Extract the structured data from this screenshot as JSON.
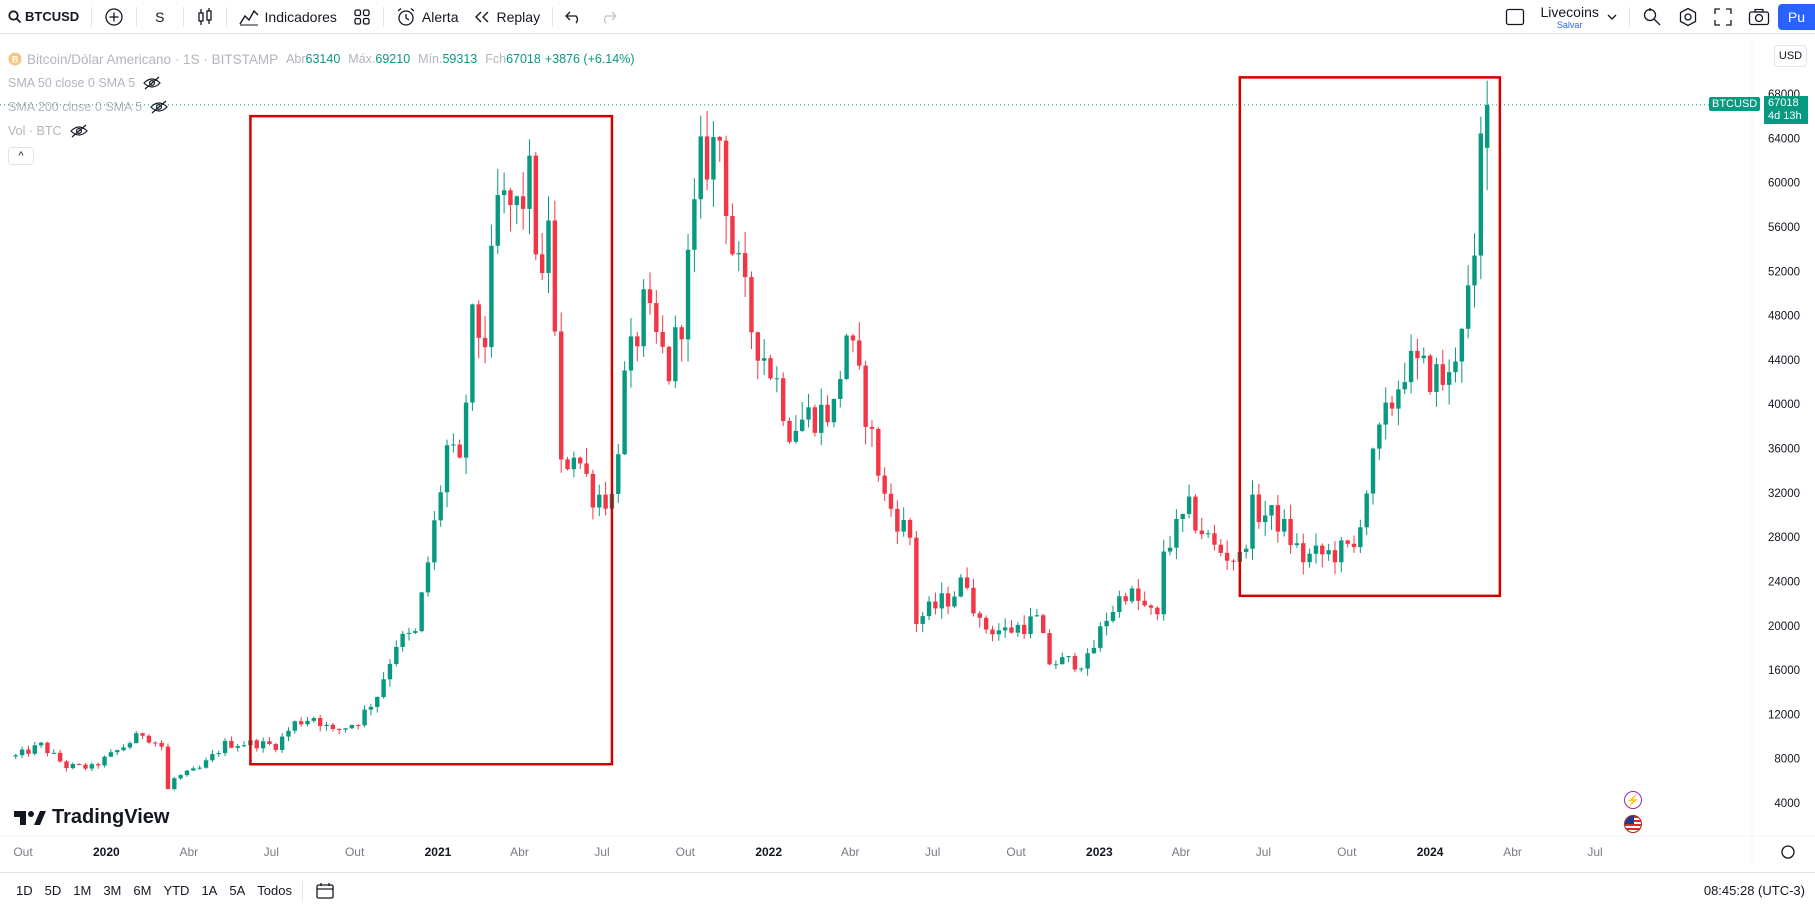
{
  "toolbar": {
    "symbol": "BTCUSD",
    "interval": "S",
    "indicators_label": "Indicadores",
    "alert_label": "Alerta",
    "replay_label": "Replay",
    "layout_name": "Livecoins",
    "layout_status": "Salvar",
    "publish_label": "Pu"
  },
  "legend": {
    "title": "Bitcoin/Dólar Americano · 1S · BITSTAMP",
    "open_label": "Abr",
    "open": "63140",
    "high_label": "Máx.",
    "high": "69210",
    "low_label": "Mín.",
    "low": "59313",
    "close_label": "Fch",
    "close": "67018",
    "change": "+3876 (+6.14%)",
    "indicators": [
      "SMA 50 close 0 SMA 5",
      "SMA 200 close 0 SMA 5",
      "Vol · BTC"
    ],
    "collapse_glyph": "^"
  },
  "currency": "USD",
  "price_tag": {
    "symbol": "BTCUSD",
    "price": "67018",
    "countdown": "4d 13h"
  },
  "brand": "TradingView",
  "bottom": {
    "ranges": [
      "1D",
      "5D",
      "1M",
      "3M",
      "6M",
      "YTD",
      "1A",
      "5A",
      "Todos"
    ],
    "clock": "08:45:28 (UTC-3)"
  },
  "colors": {
    "up": "#089981",
    "down": "#f23645",
    "highlight": "#d40000",
    "accent": "#2962ff"
  },
  "chart_data": {
    "type": "candlestick",
    "interval": "weekly",
    "y_ticks": [
      4000,
      8000,
      12000,
      16000,
      20000,
      24000,
      28000,
      32000,
      36000,
      40000,
      44000,
      48000,
      52000,
      56000,
      60000,
      64000,
      68000
    ],
    "x_ticks": [
      "Out",
      "2020",
      "Abr",
      "Jul",
      "Out",
      "2021",
      "Abr",
      "Jul",
      "Out",
      "2022",
      "Abr",
      "Jul",
      "Out",
      "2023",
      "Abr",
      "Jul",
      "Out",
      "2024",
      "Abr",
      "Jul"
    ],
    "x_range": [
      "2019-10",
      "2024-07"
    ],
    "ylim": [
      2000,
      70000
    ],
    "last_price": 67018,
    "close_path": [
      [
        "2019-09-23",
        8200
      ],
      [
        "2019-10-21",
        9200
      ],
      [
        "2019-11-18",
        7300
      ],
      [
        "2019-12-16",
        7200
      ],
      [
        "2020-01-13",
        8700
      ],
      [
        "2020-02-10",
        10300
      ],
      [
        "2020-03-02",
        9100
      ],
      [
        "2020-03-09",
        5200
      ],
      [
        "2020-03-16",
        6200
      ],
      [
        "2020-04-13",
        7100
      ],
      [
        "2020-05-11",
        9300
      ],
      [
        "2020-06-08",
        9400
      ],
      [
        "2020-07-06",
        9200
      ],
      [
        "2020-07-27",
        11200
      ],
      [
        "2020-08-17",
        11800
      ],
      [
        "2020-09-07",
        10400
      ],
      [
        "2020-10-05",
        11400
      ],
      [
        "2020-10-26",
        13800
      ],
      [
        "2020-11-16",
        18500
      ],
      [
        "2020-12-07",
        19200
      ],
      [
        "2020-12-28",
        29000
      ],
      [
        "2021-01-11",
        36000
      ],
      [
        "2021-01-25",
        34000
      ],
      [
        "2021-02-08",
        47000
      ],
      [
        "2021-02-22",
        46000
      ],
      [
        "2021-03-08",
        58000
      ],
      [
        "2021-03-29",
        57500
      ],
      [
        "2021-04-12",
        60000
      ],
      [
        "2021-04-26",
        50000
      ],
      [
        "2021-05-03",
        57500
      ],
      [
        "2021-05-17",
        34000
      ],
      [
        "2021-05-31",
        36000
      ],
      [
        "2021-06-21",
        32000
      ],
      [
        "2021-07-12",
        31500
      ],
      [
        "2021-07-26",
        42000
      ],
      [
        "2021-08-16",
        48500
      ],
      [
        "2021-09-13",
        43000
      ],
      [
        "2021-09-27",
        48000
      ],
      [
        "2021-10-18",
        61500
      ],
      [
        "2021-11-08",
        64000
      ],
      [
        "2021-11-22",
        54000
      ],
      [
        "2021-12-13",
        47000
      ],
      [
        "2022-01-10",
        42000
      ],
      [
        "2022-01-24",
        38000
      ],
      [
        "2022-02-14",
        39000
      ],
      [
        "2022-03-14",
        39500
      ],
      [
        "2022-03-28",
        46500
      ],
      [
        "2022-04-18",
        39500
      ],
      [
        "2022-05-09",
        31500
      ],
      [
        "2022-06-06",
        28000
      ],
      [
        "2022-06-13",
        20500
      ],
      [
        "2022-07-18",
        22500
      ],
      [
        "2022-08-08",
        24200
      ],
      [
        "2022-08-22",
        20000
      ],
      [
        "2022-09-19",
        19500
      ],
      [
        "2022-10-24",
        20500
      ],
      [
        "2022-11-07",
        16700
      ],
      [
        "2022-12-19",
        16800
      ],
      [
        "2023-01-09",
        20800
      ],
      [
        "2023-01-30",
        23200
      ],
      [
        "2023-03-06",
        20500
      ],
      [
        "2023-03-13",
        26900
      ],
      [
        "2023-04-10",
        30300
      ],
      [
        "2023-05-08",
        27000
      ],
      [
        "2023-06-05",
        25900
      ],
      [
        "2023-06-19",
        30500
      ],
      [
        "2023-07-17",
        29500
      ],
      [
        "2023-08-14",
        26100
      ],
      [
        "2023-09-11",
        26500
      ],
      [
        "2023-10-09",
        26900
      ],
      [
        "2023-10-16",
        30000
      ],
      [
        "2023-11-06",
        37000
      ],
      [
        "2023-12-04",
        43500
      ],
      [
        "2024-01-08",
        42500
      ],
      [
        "2024-01-22",
        42000
      ],
      [
        "2024-02-05",
        48000
      ],
      [
        "2024-02-19",
        51500
      ],
      [
        "2024-02-26",
        63140
      ],
      [
        "2024-03-04",
        67018
      ]
    ],
    "annotations": [
      {
        "type": "rectangle",
        "from": [
          "2020-06-08",
          7500
        ],
        "to": [
          "2021-07-12",
          66000
        ]
      },
      {
        "type": "rectangle",
        "from": [
          "2023-06-05",
          22700
        ],
        "to": [
          "2024-03-18",
          69500
        ]
      }
    ]
  }
}
